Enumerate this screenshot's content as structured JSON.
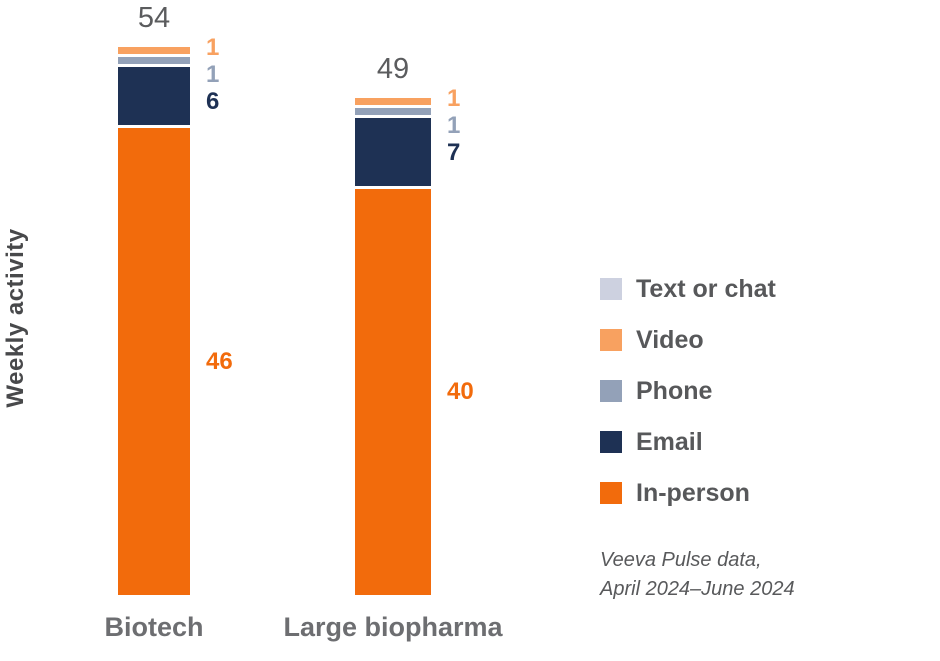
{
  "chart_data": {
    "type": "bar",
    "stacked": true,
    "title": "",
    "ylabel": "Weekly activity",
    "categories": [
      "Biotech",
      "Large biopharma"
    ],
    "totals": [
      54,
      49
    ],
    "series": [
      {
        "name": "In-person",
        "color": "#F26B0C",
        "values": [
          46,
          40
        ]
      },
      {
        "name": "Email",
        "color": "#1E3154",
        "values": [
          6,
          7
        ]
      },
      {
        "name": "Phone",
        "color": "#93A1B8",
        "values": [
          1,
          1
        ]
      },
      {
        "name": "Video",
        "color": "#F8A160",
        "values": [
          1,
          1
        ]
      },
      {
        "name": "Text or chat",
        "color": "#CDD1E0",
        "values": [
          0,
          0
        ]
      }
    ],
    "legend_order_top_to_bottom": [
      "Text or chat",
      "Video",
      "Phone",
      "Email",
      "In-person"
    ],
    "legend_position": "right",
    "grid": false,
    "ylim": [
      0,
      54
    ],
    "source_line1": "Veeva Pulse data,",
    "source_line2": "April 2024–June 2024",
    "total_label_color": "#5B5C5E",
    "category_label_color": "#6D6E71",
    "legend_text_color": "#57585A",
    "ylabel_color": "#48494B",
    "source_text_color": "#58595B"
  }
}
